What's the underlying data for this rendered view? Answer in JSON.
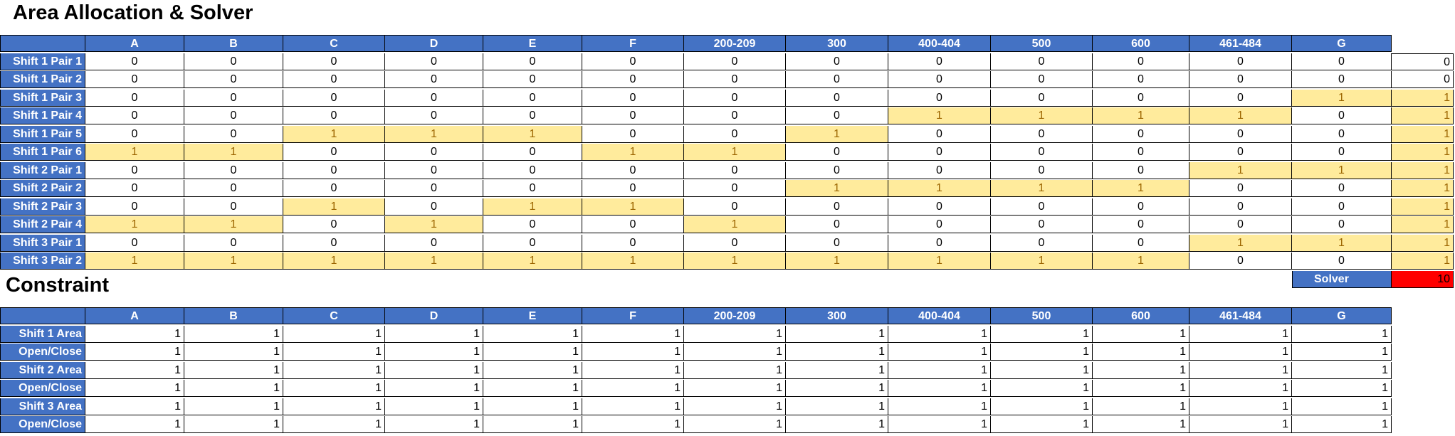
{
  "section1": {
    "title": "Area Allocation & Solver",
    "columns": [
      "A",
      "B",
      "C",
      "D",
      "E",
      "F",
      "200-209",
      "300",
      "400-404",
      "500",
      "600",
      "461-484",
      "G"
    ],
    "rows": [
      {
        "label": "Shift 1 Pair 1",
        "values": [
          0,
          0,
          0,
          0,
          0,
          0,
          0,
          0,
          0,
          0,
          0,
          0,
          0
        ],
        "total": 0
      },
      {
        "label": "Shift 1 Pair 2",
        "values": [
          0,
          0,
          0,
          0,
          0,
          0,
          0,
          0,
          0,
          0,
          0,
          0,
          0
        ],
        "total": 0
      },
      {
        "label": "Shift 1 Pair 3",
        "values": [
          0,
          0,
          0,
          0,
          0,
          0,
          0,
          0,
          0,
          0,
          0,
          0,
          1
        ],
        "total": 1
      },
      {
        "label": "Shift 1 Pair 4",
        "values": [
          0,
          0,
          0,
          0,
          0,
          0,
          0,
          0,
          1,
          1,
          1,
          1,
          0
        ],
        "total": 1
      },
      {
        "label": "Shift 1 Pair 5",
        "values": [
          0,
          0,
          1,
          1,
          1,
          0,
          0,
          1,
          0,
          0,
          0,
          0,
          0
        ],
        "total": 1
      },
      {
        "label": "Shift 1 Pair 6",
        "values": [
          1,
          1,
          0,
          0,
          0,
          1,
          1,
          0,
          0,
          0,
          0,
          0,
          0
        ],
        "total": 1
      },
      {
        "label": "Shift 2 Pair 1",
        "values": [
          0,
          0,
          0,
          0,
          0,
          0,
          0,
          0,
          0,
          0,
          0,
          1,
          1
        ],
        "total": 1
      },
      {
        "label": "Shift 2 Pair 2",
        "values": [
          0,
          0,
          0,
          0,
          0,
          0,
          0,
          1,
          1,
          1,
          1,
          0,
          0
        ],
        "total": 1
      },
      {
        "label": "Shift 2 Pair 3",
        "values": [
          0,
          0,
          1,
          0,
          1,
          1,
          0,
          0,
          0,
          0,
          0,
          0,
          0
        ],
        "total": 1
      },
      {
        "label": "Shift 2 Pair 4",
        "values": [
          1,
          1,
          0,
          1,
          0,
          0,
          1,
          0,
          0,
          0,
          0,
          0,
          0
        ],
        "total": 1
      },
      {
        "label": "Shift 3 Pair 1",
        "values": [
          0,
          0,
          0,
          0,
          0,
          0,
          0,
          0,
          0,
          0,
          0,
          1,
          1
        ],
        "total": 1
      },
      {
        "label": "Shift 3 Pair 2",
        "values": [
          1,
          1,
          1,
          1,
          1,
          1,
          1,
          1,
          1,
          1,
          1,
          0,
          0
        ],
        "total": 1
      }
    ],
    "solver": {
      "label": "Solver",
      "value": "10"
    }
  },
  "section2": {
    "title": "Constraint",
    "columns": [
      "A",
      "B",
      "C",
      "D",
      "E",
      "F",
      "200-209",
      "300",
      "400-404",
      "500",
      "600",
      "461-484",
      "G"
    ],
    "rows": [
      {
        "label": "Shift 1 Area",
        "values": [
          1,
          1,
          1,
          1,
          1,
          1,
          1,
          1,
          1,
          1,
          1,
          1,
          1
        ]
      },
      {
        "label": "Open/Close",
        "values": [
          1,
          1,
          1,
          1,
          1,
          1,
          1,
          1,
          1,
          1,
          1,
          1,
          1
        ]
      },
      {
        "label": "Shift 2 Area",
        "values": [
          1,
          1,
          1,
          1,
          1,
          1,
          1,
          1,
          1,
          1,
          1,
          1,
          1
        ]
      },
      {
        "label": "Open/Close",
        "values": [
          1,
          1,
          1,
          1,
          1,
          1,
          1,
          1,
          1,
          1,
          1,
          1,
          1
        ]
      },
      {
        "label": "Shift 3 Area",
        "values": [
          1,
          1,
          1,
          1,
          1,
          1,
          1,
          1,
          1,
          1,
          1,
          1,
          1
        ]
      },
      {
        "label": "Open/Close",
        "values": [
          1,
          1,
          1,
          1,
          1,
          1,
          1,
          1,
          1,
          1,
          1,
          1,
          1
        ]
      }
    ]
  },
  "colors": {
    "header_bg": "#4472c4",
    "highlight_bg": "#ffeb9c",
    "highlight_text": "#9c6500",
    "solver_bg": "#ff0000"
  }
}
